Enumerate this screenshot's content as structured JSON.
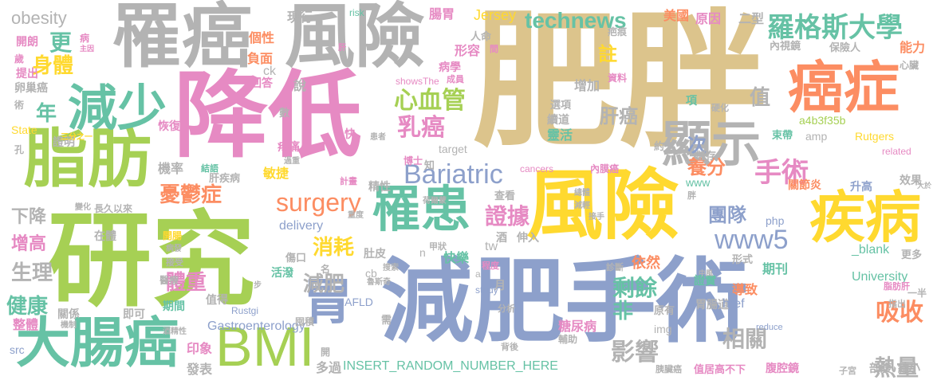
{
  "palette": {
    "tan": "#dcc48c",
    "pink": "#e68ac3",
    "green": "#a6d054",
    "grey": "#b3b3b3",
    "teal": "#66c2a5",
    "blue": "#8da0cb",
    "orange": "#fc8d62",
    "yellow": "#ffd92f"
  },
  "words": [
    {
      "text": "肥胖",
      "color": "tan"
    },
    {
      "text": "研究",
      "color": "green"
    },
    {
      "text": "減肥手術",
      "color": "blue"
    },
    {
      "text": "降低",
      "color": "pink"
    },
    {
      "text": "風險",
      "color": "yellow"
    },
    {
      "text": "罹癌",
      "color": "grey"
    },
    {
      "text": "風險",
      "color": "grey"
    },
    {
      "text": "脂肪",
      "color": "green"
    },
    {
      "text": "癌症",
      "color": "orange"
    },
    {
      "text": "大腸癌",
      "color": "teal"
    },
    {
      "text": "BMI",
      "color": "green"
    },
    {
      "text": "疾病",
      "color": "yellow"
    },
    {
      "text": "減少",
      "color": "teal"
    },
    {
      "text": "顯示",
      "color": "grey"
    },
    {
      "text": "罹患",
      "color": "teal"
    },
    {
      "text": "胃",
      "color": "blue"
    },
    {
      "text": "羅格斯大學",
      "color": "teal"
    },
    {
      "text": "technews",
      "color": "teal"
    },
    {
      "text": "Bariatric",
      "color": "blue"
    },
    {
      "text": "surgery",
      "color": "orange"
    },
    {
      "text": "心血管",
      "color": "green"
    },
    {
      "text": "乳癌",
      "color": "pink"
    },
    {
      "text": "www5",
      "color": "blue"
    },
    {
      "text": "手術",
      "color": "pink"
    },
    {
      "text": "證據",
      "color": "pink"
    },
    {
      "text": "肝癌",
      "color": "grey"
    },
    {
      "text": "更",
      "color": "teal"
    },
    {
      "text": "身體",
      "color": "yellow"
    },
    {
      "text": "年",
      "color": "teal"
    },
    {
      "text": "值",
      "color": "grey"
    },
    {
      "text": "註",
      "color": "yellow"
    },
    {
      "text": "次",
      "color": "blue"
    },
    {
      "text": "養分",
      "color": "orange"
    },
    {
      "text": "憂鬱症",
      "color": "orange"
    },
    {
      "text": "團隊",
      "color": "blue"
    },
    {
      "text": "吸收",
      "color": "orange"
    },
    {
      "text": "剩餘",
      "color": "teal"
    },
    {
      "text": "影響",
      "color": "grey"
    },
    {
      "text": "相關",
      "color": "grey"
    },
    {
      "text": "熱量",
      "color": "grey"
    },
    {
      "text": "非",
      "color": "teal"
    },
    {
      "text": "消耗",
      "color": "yellow"
    },
    {
      "text": "減肥",
      "color": "grey"
    },
    {
      "text": "體重",
      "color": "pink"
    },
    {
      "text": "健康",
      "color": "teal"
    },
    {
      "text": "生理",
      "color": "grey"
    },
    {
      "text": "增高",
      "color": "pink"
    },
    {
      "text": "下降",
      "color": "grey"
    },
    {
      "text": "obesity",
      "color": "grey"
    },
    {
      "text": "Jersey",
      "color": "yellow"
    },
    {
      "text": "腸胃",
      "color": "pink"
    },
    {
      "text": "美國",
      "color": "orange"
    },
    {
      "text": "原因",
      "color": "pink"
    },
    {
      "text": "二型",
      "color": "grey"
    },
    {
      "text": "現行",
      "color": "grey"
    },
    {
      "text": "risk",
      "color": "teal"
    },
    {
      "text": "病學",
      "color": "pink"
    },
    {
      "text": "形容",
      "color": "pink"
    },
    {
      "text": "個性",
      "color": "orange"
    },
    {
      "text": "負面",
      "color": "orange"
    },
    {
      "text": "ck",
      "color": "grey"
    },
    {
      "text": "回答",
      "color": "pink"
    },
    {
      "text": "說",
      "color": "grey"
    },
    {
      "text": "增加",
      "color": "grey"
    },
    {
      "text": "項",
      "color": "teal"
    },
    {
      "text": "能力",
      "color": "orange"
    },
    {
      "text": "保險人",
      "color": "grey"
    },
    {
      "text": "內視鏡",
      "color": "grey"
    },
    {
      "text": "開朗",
      "color": "pink"
    },
    {
      "text": "提出",
      "color": "pink"
    },
    {
      "text": "卵巢癌",
      "color": "grey"
    },
    {
      "text": "恢復",
      "color": "pink"
    },
    {
      "text": "證明",
      "color": "grey"
    },
    {
      "text": "State",
      "color": "yellow"
    },
    {
      "text": "機率",
      "color": "grey"
    },
    {
      "text": "疼痛",
      "color": "pink"
    },
    {
      "text": "敏捷",
      "color": "yellow"
    },
    {
      "text": "快",
      "color": "pink"
    },
    {
      "text": "靈活",
      "color": "teal"
    },
    {
      "text": "續道",
      "color": "grey"
    },
    {
      "text": "target",
      "color": "grey"
    },
    {
      "text": "a4b3f35b",
      "color": "green"
    },
    {
      "text": "Rutgers",
      "color": "yellow"
    },
    {
      "text": "amp",
      "color": "grey"
    },
    {
      "text": "束帶",
      "color": "teal"
    },
    {
      "text": "儲存",
      "color": "grey"
    },
    {
      "text": "關節炎",
      "color": "orange"
    },
    {
      "text": "升高",
      "color": "blue"
    },
    {
      "text": "效果",
      "color": "grey"
    },
    {
      "text": "肝疾病",
      "color": "grey"
    },
    {
      "text": "精性",
      "color": "grey"
    },
    {
      "text": "查看",
      "color": "grey"
    },
    {
      "text": "www",
      "color": "teal"
    },
    {
      "text": "php",
      "color": "blue"
    },
    {
      "text": "長久以來",
      "color": "grey"
    },
    {
      "text": "在體",
      "color": "grey"
    },
    {
      "text": "開腸",
      "color": "yellow"
    },
    {
      "text": "傷口",
      "color": "grey"
    },
    {
      "text": "delivery",
      "color": "blue"
    },
    {
      "text": "肚皮",
      "color": "grey"
    },
    {
      "text": "酒",
      "color": "grey"
    },
    {
      "text": "伸入",
      "color": "grey"
    },
    {
      "text": "快樂",
      "color": "teal"
    },
    {
      "text": "tw",
      "color": "grey"
    },
    {
      "text": "依然",
      "color": "orange"
    },
    {
      "text": "形式",
      "color": "grey"
    },
    {
      "text": "_blank",
      "color": "teal"
    },
    {
      "text": "更多",
      "color": "grey"
    },
    {
      "text": "University",
      "color": "teal"
    },
    {
      "text": "期刊",
      "color": "teal"
    },
    {
      "text": "證實",
      "color": "teal"
    },
    {
      "text": "導致",
      "color": "orange"
    },
    {
      "text": "活潑",
      "color": "teal"
    },
    {
      "text": "cb",
      "color": "grey"
    },
    {
      "text": "月",
      "color": "grey"
    },
    {
      "text": "值得",
      "color": "grey"
    },
    {
      "text": "即可",
      "color": "grey"
    },
    {
      "text": "關係",
      "color": "grey"
    },
    {
      "text": "期間",
      "color": "teal"
    },
    {
      "text": "NAFLD",
      "color": "blue"
    },
    {
      "text": "胃腸道",
      "color": "grey"
    },
    {
      "text": "href",
      "color": "blue"
    },
    {
      "text": "Gastroenterology",
      "color": "blue"
    },
    {
      "text": "整體",
      "color": "pink"
    },
    {
      "text": "src",
      "color": "blue"
    },
    {
      "text": "印象",
      "color": "pink"
    },
    {
      "text": "發表",
      "color": "grey"
    },
    {
      "text": "多過",
      "color": "grey"
    },
    {
      "text": "INSERT_RANDOM_NUMBER_HERE",
      "color": "teal"
    },
    {
      "text": "糖尿病",
      "color": "pink"
    },
    {
      "text": "img",
      "color": "grey"
    },
    {
      "text": "原有",
      "color": "grey"
    },
    {
      "text": "腹腔鏡",
      "color": "pink"
    },
    {
      "text": "剖腹",
      "color": "grey"
    },
    {
      "text": "縮小",
      "color": "grey"
    },
    {
      "text": "值居高不下",
      "color": "pink"
    },
    {
      "text": "子宮",
      "color": "grey"
    },
    {
      "text": "胰臟癌",
      "color": "grey"
    },
    {
      "text": "人命",
      "color": "grey"
    },
    {
      "text": "間",
      "color": "pink"
    },
    {
      "text": "疤痕",
      "color": "grey"
    },
    {
      "text": "心臟",
      "color": "grey"
    },
    {
      "text": "資料",
      "color": "pink"
    },
    {
      "text": "成員",
      "color": "pink"
    },
    {
      "text": "showsThe",
      "color": "pink"
    },
    {
      "text": "選項",
      "color": "grey"
    },
    {
      "text": "硬化",
      "color": "grey"
    },
    {
      "text": "約",
      "color": "grey"
    },
    {
      "text": "related",
      "color": "pink"
    },
    {
      "text": "cancers",
      "color": "pink"
    },
    {
      "text": "內膜癌",
      "color": "pink"
    },
    {
      "text": "知",
      "color": "grey"
    },
    {
      "text": "博士",
      "color": "pink"
    },
    {
      "text": "計畫",
      "color": "pink"
    },
    {
      "text": "結語",
      "color": "teal"
    },
    {
      "text": "三分之一",
      "color": "yellow"
    },
    {
      "text": "孔",
      "color": "grey"
    },
    {
      "text": "術",
      "color": "grey"
    },
    {
      "text": "歲",
      "color": "pink"
    },
    {
      "text": "病",
      "color": "pink"
    },
    {
      "text": "主因",
      "color": "pink"
    },
    {
      "text": "肝",
      "color": "pink"
    },
    {
      "text": "數",
      "color": "grey"
    },
    {
      "text": "一半",
      "color": "grey"
    },
    {
      "text": "脂肪肝",
      "color": "pink"
    },
    {
      "text": "指出",
      "color": "grey"
    },
    {
      "text": "reduce",
      "color": "blue"
    },
    {
      "text": "中風",
      "color": "grey"
    },
    {
      "text": "診斷",
      "color": "grey"
    },
    {
      "text": "輔助",
      "color": "grey"
    },
    {
      "text": "背後",
      "color": "grey"
    },
    {
      "text": "分析",
      "color": "grey"
    },
    {
      "text": "study",
      "color": "blue"
    },
    {
      "text": "Rustgi",
      "color": "blue"
    },
    {
      "text": "甲狀",
      "color": "grey"
    },
    {
      "text": "程度",
      "color": "pink"
    },
    {
      "text": "需",
      "color": "grey"
    },
    {
      "text": "搜索",
      "color": "grey"
    },
    {
      "text": "醫療",
      "color": "grey"
    },
    {
      "text": "機制",
      "color": "grey"
    },
    {
      "text": "酒精性",
      "color": "grey"
    },
    {
      "text": "接受",
      "color": "grey"
    },
    {
      "text": "病發",
      "color": "grey"
    },
    {
      "text": "變化",
      "color": "grey"
    },
    {
      "text": "名",
      "color": "grey"
    },
    {
      "text": "a",
      "color": "grey"
    },
    {
      "text": "n",
      "color": "grey"
    },
    {
      "text": "步",
      "color": "grey"
    },
    {
      "text": "減輕",
      "color": "grey"
    },
    {
      "text": "總體",
      "color": "grey"
    },
    {
      "text": "接手",
      "color": "grey"
    },
    {
      "text": "胖",
      "color": "grey"
    },
    {
      "text": "大於",
      "color": "grey"
    },
    {
      "text": "荷爾蒙",
      "color": "grey"
    },
    {
      "text": "重度",
      "color": "grey"
    },
    {
      "text": "過重",
      "color": "grey"
    },
    {
      "text": "患者",
      "color": "grey"
    },
    {
      "text": "開",
      "color": "grey"
    },
    {
      "text": "魯斯奇",
      "color": "grey"
    },
    {
      "text": "囤積",
      "color": "grey"
    }
  ]
}
